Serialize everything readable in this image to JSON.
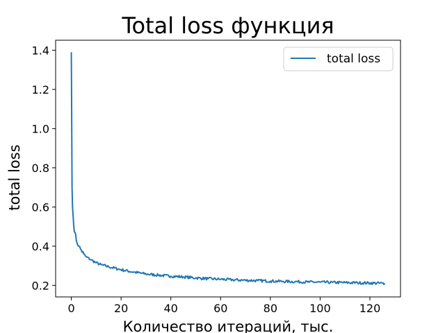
{
  "chart_data": {
    "type": "line",
    "title": "Total loss функция",
    "xlabel": "Количество итераций, тыс.",
    "ylabel": "total loss",
    "xlim": [
      -6.3,
      132.3
    ],
    "ylim": [
      0.141,
      1.451
    ],
    "xticks": [
      0,
      20,
      40,
      60,
      80,
      100,
      120
    ],
    "yticks": [
      0.2,
      0.4,
      0.6,
      0.8,
      1.0,
      1.2,
      1.4
    ],
    "xtick_labels": [
      "0",
      "20",
      "40",
      "60",
      "80",
      "100",
      "120"
    ],
    "ytick_labels": [
      "0.2",
      "0.4",
      "0.6",
      "0.8",
      "1.0",
      "1.2",
      "1.4"
    ],
    "grid": false,
    "legend": {
      "position": "top-right",
      "entries": [
        "total loss"
      ]
    },
    "series": [
      {
        "name": "total loss",
        "color": "#1f77b4",
        "x": [
          0,
          0.1,
          0.2,
          0.3,
          0.5,
          0.7,
          1,
          1.5,
          2,
          3,
          4,
          5,
          6,
          8,
          10,
          12,
          15,
          20,
          25,
          30,
          35,
          40,
          45,
          50,
          55,
          60,
          65,
          70,
          75,
          80,
          85,
          90,
          95,
          100,
          105,
          110,
          115,
          120,
          126
        ],
        "y": [
          1.39,
          1.2,
          0.95,
          0.7,
          0.6,
          0.56,
          0.5,
          0.47,
          0.43,
          0.4,
          0.38,
          0.36,
          0.345,
          0.33,
          0.315,
          0.305,
          0.295,
          0.28,
          0.268,
          0.258,
          0.252,
          0.247,
          0.243,
          0.238,
          0.234,
          0.231,
          0.228,
          0.226,
          0.224,
          0.222,
          0.22,
          0.219,
          0.217,
          0.216,
          0.215,
          0.214,
          0.213,
          0.212,
          0.21
        ]
      }
    ]
  }
}
